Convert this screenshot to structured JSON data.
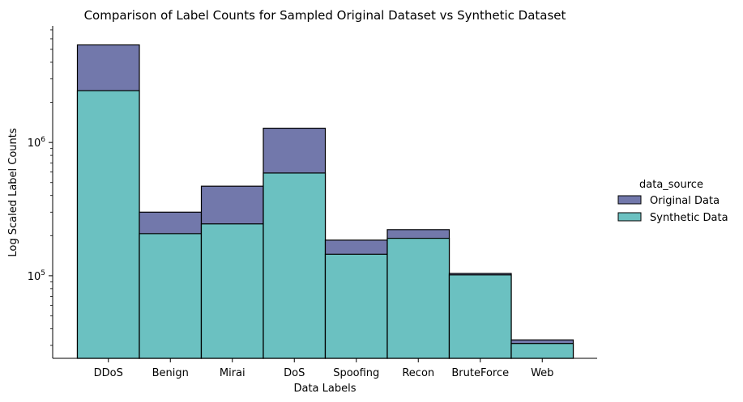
{
  "chart_data": {
    "type": "bar",
    "stacked": true,
    "title": "Comparison of Label Counts for Sampled Original Dataset vs Synthetic Dataset",
    "xlabel": "Data Labels",
    "ylabel": "Log Scaled Label Counts",
    "yscale": "log",
    "ylim": [
      24000,
      7500000
    ],
    "categories": [
      "DDoS",
      "Benign",
      "Mirai",
      "DoS",
      "Spoofing",
      "Recon",
      "BruteForce",
      "Web"
    ],
    "yticks": [
      {
        "base": "10",
        "exp": "5",
        "value": 100000
      },
      {
        "base": "10",
        "exp": "6",
        "value": 1000000
      }
    ],
    "series": [
      {
        "name": "Original Data",
        "color": "#7278ab",
        "values": [
          5400000,
          300000,
          470000,
          1280000,
          185000,
          222000,
          104000,
          33000
        ]
      },
      {
        "name": "Synthetic Data",
        "color": "#6bc1c1",
        "values": [
          2450000,
          207000,
          245000,
          590000,
          145000,
          191000,
          101500,
          31000
        ]
      }
    ],
    "legend": {
      "title": "data_source",
      "position": "right"
    },
    "grid": false
  }
}
